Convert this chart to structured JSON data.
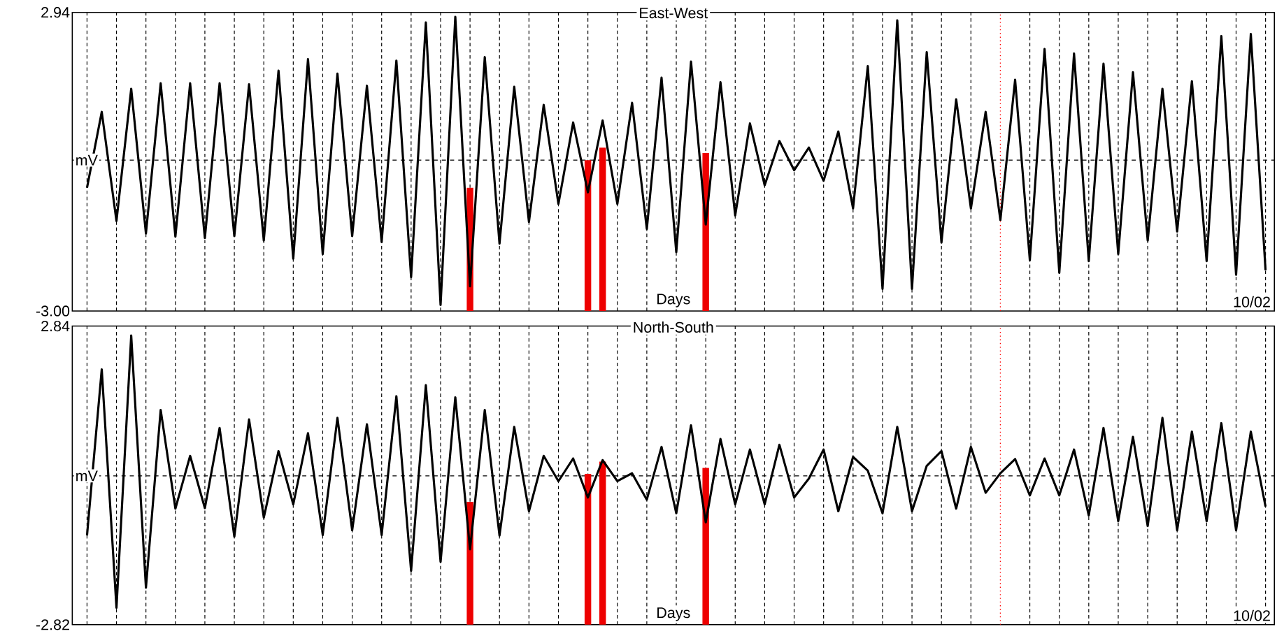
{
  "chart_data": [
    {
      "type": "line",
      "title": "East-West",
      "xlabel": "Days",
      "ylabel": "mV",
      "annotations": [
        "10/02"
      ],
      "ylim": [
        -3.0,
        2.94
      ],
      "categories": [
        null,
        null,
        null,
        null,
        null,
        null,
        null,
        null,
        null,
        null,
        null,
        null,
        null,
        null,
        null,
        null,
        null,
        null,
        null,
        null,
        null,
        null,
        null,
        null,
        null,
        null,
        null,
        null,
        null,
        null,
        null,
        null,
        null,
        null,
        null,
        null,
        null,
        null,
        null,
        null,
        null,
        null,
        null,
        null,
        null,
        null,
        null,
        null,
        null,
        null,
        null,
        null,
        null,
        null,
        null,
        null,
        null,
        null,
        null,
        null,
        null,
        null,
        null,
        null,
        null,
        null,
        null,
        null,
        null,
        null,
        null,
        null,
        null,
        null,
        null,
        null,
        null,
        null,
        null,
        null,
        null
      ],
      "yticks": [
        2.94,
        {
          "value": -3.0,
          "label": "-3.00"
        }
      ],
      "tick_labels": "y",
      "grid": "x",
      "ref_lines": [
        {
          "axis": "y",
          "value": 0,
          "color": "#000000",
          "line_style": "dashed"
        }
      ],
      "series": [
        {
          "color": "#000000",
          "values": [
            -0.55,
            0.96,
            -1.21,
            1.42,
            -1.46,
            1.53,
            -1.52,
            1.53,
            -1.55,
            1.53,
            -1.51,
            1.51,
            -1.6,
            1.78,
            -1.96,
            2.01,
            -1.87,
            1.72,
            -1.51,
            1.48,
            -1.63,
            1.98,
            -2.33,
            2.74,
            -2.88,
            2.85,
            -2.51,
            2.05,
            -1.66,
            1.46,
            -1.23,
            1.1,
            -0.87,
            0.75,
            -0.64,
            0.79,
            -0.87,
            1.14,
            -1.37,
            1.64,
            -1.83,
            1.96,
            -1.28,
            1.55,
            -1.1,
            0.73,
            -0.5,
            0.38,
            -0.2,
            0.25,
            -0.41,
            0.57,
            -0.96,
            1.87,
            -2.56,
            2.78,
            -2.56,
            2.15,
            -1.64,
            1.21,
            -0.96,
            0.96,
            -1.19,
            1.6,
            -1.99,
            2.21,
            -2.24,
            2.12,
            -2.01,
            1.92,
            -1.87,
            1.75,
            -1.6,
            1.42,
            -1.42,
            1.57,
            -2.01,
            2.47,
            -2.28,
            2.51,
            -2.19
          ]
        },
        {
          "type": "bar",
          "color": "#ee0000",
          "base": [
            null,
            null,
            null,
            null,
            null,
            null,
            null,
            null,
            null,
            null,
            null,
            null,
            null,
            null,
            null,
            null,
            null,
            null,
            null,
            null,
            null,
            null,
            null,
            null,
            null,
            null,
            -3.0,
            null,
            null,
            null,
            null,
            null,
            null,
            null,
            -3.0,
            -3.0,
            null,
            null,
            null,
            null,
            null,
            null,
            -3.0,
            null,
            null,
            null,
            null,
            null,
            null,
            null,
            null,
            null,
            null,
            null,
            null,
            null,
            null,
            null,
            null,
            null,
            null,
            null,
            null,
            null,
            null,
            null,
            null,
            null,
            null,
            null,
            null,
            null,
            null,
            null,
            null,
            null,
            null,
            null,
            null,
            null,
            null
          ],
          "values": [
            null,
            null,
            null,
            null,
            null,
            null,
            null,
            null,
            null,
            null,
            null,
            null,
            null,
            null,
            null,
            null,
            null,
            null,
            null,
            null,
            null,
            null,
            null,
            null,
            null,
            null,
            2.45,
            null,
            null,
            null,
            null,
            null,
            null,
            null,
            3.0,
            3.25,
            null,
            null,
            null,
            null,
            null,
            null,
            3.14,
            null,
            null,
            null,
            null,
            null,
            null,
            null,
            null,
            null,
            null,
            null,
            null,
            null,
            null,
            null,
            null,
            null,
            null,
            null,
            null,
            null,
            null,
            null,
            null,
            null,
            null,
            null,
            null,
            null,
            null,
            null,
            null,
            null,
            null,
            null,
            null,
            null,
            null
          ]
        }
      ]
    },
    {
      "type": "line",
      "title": "North-South",
      "xlabel": "Days",
      "ylabel": "mV",
      "annotations": [
        "10/02"
      ],
      "ylim": [
        -2.82,
        2.84
      ],
      "categories": [
        null,
        null,
        null,
        null,
        null,
        null,
        null,
        null,
        null,
        null,
        null,
        null,
        null,
        null,
        null,
        null,
        null,
        null,
        null,
        null,
        null,
        null,
        null,
        null,
        null,
        null,
        null,
        null,
        null,
        null,
        null,
        null,
        null,
        null,
        null,
        null,
        null,
        null,
        null,
        null,
        null,
        null,
        null,
        null,
        null,
        null,
        null,
        null,
        null,
        null,
        null,
        null,
        null,
        null,
        null,
        null,
        null,
        null,
        null,
        null,
        null,
        null,
        null,
        null,
        null,
        null,
        null,
        null,
        null,
        null,
        null,
        null,
        null,
        null,
        null,
        null,
        null,
        null,
        null,
        null,
        null
      ],
      "yticks": [
        2.84,
        -2.82
      ],
      "tick_labels": "y",
      "grid": "x",
      "ref_lines": [
        {
          "axis": "y",
          "value": 0,
          "color": "#000000",
          "line_style": "dashed"
        }
      ],
      "series": [
        {
          "color": "#000000",
          "values": [
            -1.13,
            2.02,
            -2.5,
            2.66,
            -2.12,
            1.25,
            -0.62,
            0.38,
            -0.61,
            0.91,
            -1.15,
            1.07,
            -0.79,
            0.47,
            -0.54,
            0.81,
            -1.12,
            1.1,
            -1.03,
            0.98,
            -1.12,
            1.51,
            -1.8,
            1.72,
            -1.63,
            1.49,
            -1.39,
            1.25,
            -1.13,
            0.93,
            -0.67,
            0.38,
            -0.1,
            0.33,
            -0.41,
            0.3,
            -0.1,
            0.05,
            -0.45,
            0.55,
            -0.71,
            0.96,
            -0.88,
            0.7,
            -0.54,
            0.5,
            -0.54,
            0.59,
            -0.41,
            -0.05,
            0.5,
            -0.67,
            0.36,
            0.1,
            -0.71,
            0.93,
            -0.67,
            0.19,
            0.47,
            -0.62,
            0.55,
            -0.32,
            0.05,
            0.32,
            -0.37,
            0.33,
            -0.37,
            0.5,
            -0.75,
            0.91,
            -0.86,
            0.74,
            -0.95,
            1.1,
            -1.03,
            0.84,
            -0.86,
            1.0,
            -1.03,
            0.84,
            -0.58
          ]
        },
        {
          "type": "bar",
          "color": "#ee0000",
          "base": [
            null,
            null,
            null,
            null,
            null,
            null,
            null,
            null,
            null,
            null,
            null,
            null,
            null,
            null,
            null,
            null,
            null,
            null,
            null,
            null,
            null,
            null,
            null,
            null,
            null,
            null,
            -2.82,
            null,
            null,
            null,
            null,
            null,
            null,
            null,
            -2.82,
            -2.82,
            null,
            null,
            null,
            null,
            null,
            null,
            -2.82,
            null,
            null,
            null,
            null,
            null,
            null,
            null,
            null,
            null,
            null,
            null,
            null,
            null,
            null,
            null,
            null,
            null,
            null,
            null,
            null,
            null,
            null,
            null,
            null,
            null,
            null,
            null,
            null,
            null,
            null,
            null,
            null,
            null,
            null,
            null,
            null,
            null,
            null
          ],
          "values": [
            null,
            null,
            null,
            null,
            null,
            null,
            null,
            null,
            null,
            null,
            null,
            null,
            null,
            null,
            null,
            null,
            null,
            null,
            null,
            null,
            null,
            null,
            null,
            null,
            null,
            null,
            2.33,
            null,
            null,
            null,
            null,
            null,
            null,
            null,
            2.86,
            3.09,
            null,
            null,
            null,
            null,
            null,
            null,
            2.97,
            null,
            null,
            null,
            null,
            null,
            null,
            null,
            null,
            null,
            null,
            null,
            null,
            null,
            null,
            null,
            null,
            null,
            null,
            null,
            null,
            null,
            null,
            null,
            null,
            null,
            null,
            null,
            null,
            null,
            null,
            null,
            null,
            null,
            null,
            null,
            null,
            null,
            null
          ]
        }
      ]
    }
  ]
}
